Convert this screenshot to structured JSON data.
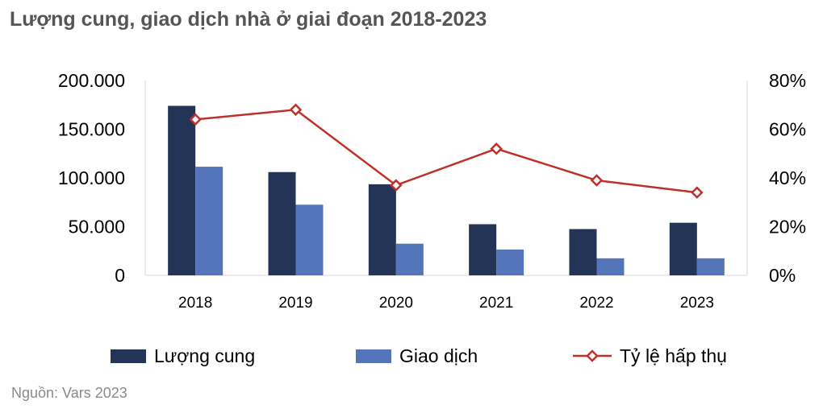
{
  "title": "Lượng cung, giao dịch nhà ở giai đoạn 2018-2023",
  "source": "Nguồn: Vars 2023",
  "chart_data": {
    "type": "bar",
    "categories": [
      "2018",
      "2019",
      "2020",
      "2021",
      "2022",
      "2023"
    ],
    "series": [
      {
        "name": "Lượng cung",
        "type": "bar",
        "axis": "left",
        "color": "#243457",
        "values": [
          174000,
          106000,
          93500,
          52500,
          47500,
          54000
        ]
      },
      {
        "name": "Giao dịch",
        "type": "bar",
        "axis": "left",
        "color": "#5575bb",
        "values": [
          111500,
          72500,
          32500,
          26500,
          17500,
          17500
        ]
      },
      {
        "name": "Tỷ lệ hấp thụ",
        "type": "line",
        "axis": "right",
        "color": "#c0302b",
        "marker": "diamond",
        "values": [
          64,
          68,
          37,
          52,
          39,
          34
        ]
      }
    ],
    "y_left": {
      "ylim": [
        0,
        200000
      ],
      "ticks": [
        0,
        50000,
        100000,
        150000,
        200000
      ],
      "tick_labels": [
        "0",
        "50.000",
        "100.000",
        "150.000",
        "200.000"
      ]
    },
    "y_right": {
      "ylim": [
        0,
        80
      ],
      "ticks": [
        0,
        20,
        40,
        60,
        80
      ],
      "tick_labels": [
        "0%",
        "20%",
        "40%",
        "60%",
        "80%"
      ]
    },
    "grid": false,
    "legend": "bottom"
  }
}
